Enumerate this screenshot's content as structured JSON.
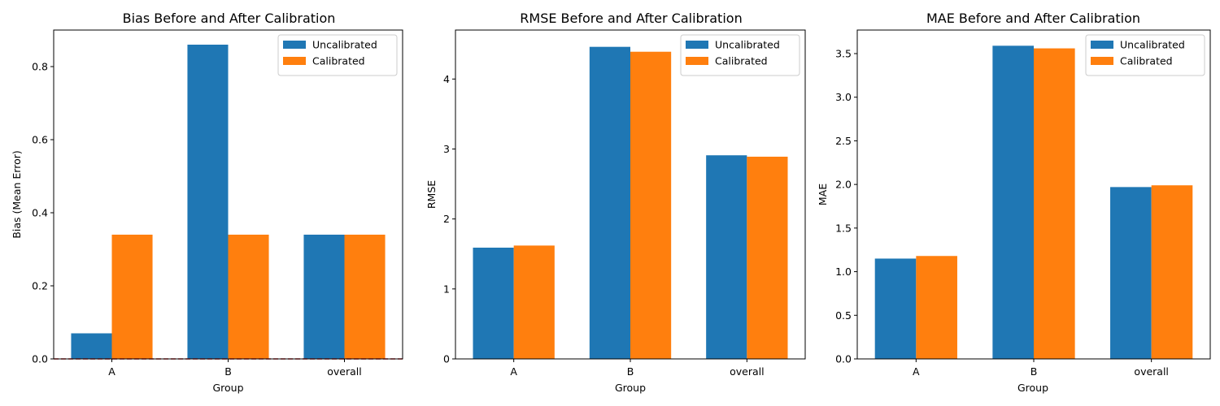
{
  "colors": {
    "uncalibrated": "#1f77b4",
    "calibrated": "#ff7f0e",
    "reference_line": "#d62728",
    "axis": "#000000",
    "legend_border": "#cccccc"
  },
  "chart_data": [
    {
      "type": "bar",
      "title": "Bias Before and After Calibration",
      "xlabel": "Group",
      "ylabel": "Bias (Mean Error)",
      "categories": [
        "A",
        "B",
        "overall"
      ],
      "series": [
        {
          "name": "Uncalibrated",
          "values": [
            0.07,
            0.86,
            0.34
          ]
        },
        {
          "name": "Calibrated",
          "values": [
            0.34,
            0.34,
            0.34
          ]
        }
      ],
      "ylim": [
        0,
        0.9
      ],
      "yticks": [
        0.0,
        0.2,
        0.4,
        0.6,
        0.8
      ],
      "ytick_labels": [
        "0.0",
        "0.2",
        "0.4",
        "0.6",
        "0.8"
      ],
      "reference_line": {
        "y": 0,
        "style": "dashed"
      },
      "legend": "top-right",
      "grid": false
    },
    {
      "type": "bar",
      "title": "RMSE Before and After Calibration",
      "xlabel": "Group",
      "ylabel": "RMSE",
      "categories": [
        "A",
        "B",
        "overall"
      ],
      "series": [
        {
          "name": "Uncalibrated",
          "values": [
            1.59,
            4.46,
            2.91
          ]
        },
        {
          "name": "Calibrated",
          "values": [
            1.62,
            4.39,
            2.89
          ]
        }
      ],
      "ylim": [
        0,
        4.7
      ],
      "yticks": [
        0,
        1,
        2,
        3,
        4
      ],
      "ytick_labels": [
        "0",
        "1",
        "2",
        "3",
        "4"
      ],
      "legend": "top-right",
      "grid": false
    },
    {
      "type": "bar",
      "title": "MAE Before and After Calibration",
      "xlabel": "Group",
      "ylabel": "MAE",
      "categories": [
        "A",
        "B",
        "overall"
      ],
      "series": [
        {
          "name": "Uncalibrated",
          "values": [
            1.15,
            3.59,
            1.97
          ]
        },
        {
          "name": "Calibrated",
          "values": [
            1.18,
            3.56,
            1.99
          ]
        }
      ],
      "ylim": [
        0,
        3.77
      ],
      "yticks": [
        0.0,
        0.5,
        1.0,
        1.5,
        2.0,
        2.5,
        3.0,
        3.5
      ],
      "ytick_labels": [
        "0.0",
        "0.5",
        "1.0",
        "1.5",
        "2.0",
        "2.5",
        "3.0",
        "3.5"
      ],
      "legend": "top-right",
      "grid": false
    }
  ]
}
